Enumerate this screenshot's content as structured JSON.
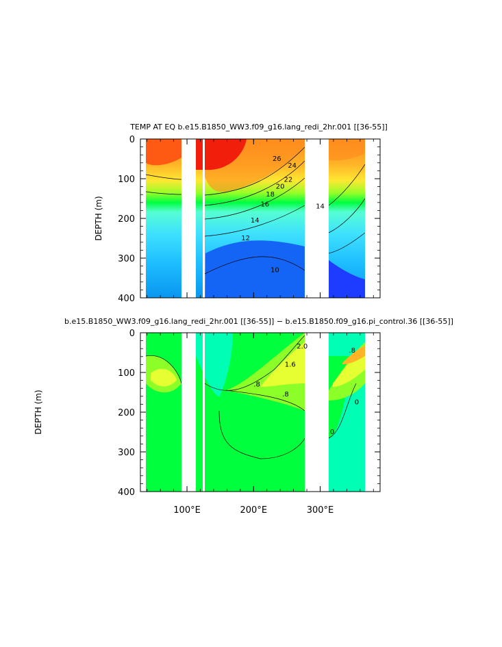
{
  "chart_data": [
    {
      "type": "heatmap",
      "title": "TEMP AT EQ  b.e15.B1850_WW3.f09_g16.lang_redi_2hr.001  [[36-55]]",
      "xlabel": "",
      "ylabel": "DEPTH (m)",
      "xlim": [
        30,
        390
      ],
      "ylim": [
        400,
        0
      ],
      "x_ticks": [
        {
          "value": 100,
          "label": ""
        },
        {
          "value": 200,
          "label": ""
        },
        {
          "value": 300,
          "label": ""
        }
      ],
      "y_ticks": [
        {
          "value": 0,
          "label": "0"
        },
        {
          "value": 100,
          "label": "100"
        },
        {
          "value": 200,
          "label": "200"
        },
        {
          "value": 300,
          "label": "300"
        },
        {
          "value": 400,
          "label": "400"
        }
      ],
      "contour_labels": [
        {
          "text": "26",
          "lon": 235,
          "depth": 55
        },
        {
          "text": "24",
          "lon": 258,
          "depth": 72
        },
        {
          "text": "22",
          "lon": 252,
          "depth": 108
        },
        {
          "text": "20",
          "lon": 240,
          "depth": 125
        },
        {
          "text": "18",
          "lon": 225,
          "depth": 145
        },
        {
          "text": "16",
          "lon": 217,
          "depth": 170
        },
        {
          "text": "14",
          "lon": 202,
          "depth": 210
        },
        {
          "text": "14",
          "lon": 300,
          "depth": 175
        },
        {
          "text": "12",
          "lon": 188,
          "depth": 255
        },
        {
          "text": "10",
          "lon": 232,
          "depth": 335
        }
      ],
      "land_gaps_lon": [
        [
          97,
          115
        ],
        [
          128,
          130
        ],
        [
          278,
          313
        ]
      ]
    },
    {
      "type": "heatmap",
      "title": "b.e15.B1850_WW3.f09_g16.lang_redi_2hr.001  [[36-55]]  −  b.e15.B1850.f09_g16.pi_control.36  [[36-55]]",
      "xlabel": "",
      "ylabel": "DEPTH (m)",
      "xlim": [
        30,
        390
      ],
      "ylim": [
        400,
        0
      ],
      "x_ticks": [
        {
          "value": 100,
          "label": "100°E"
        },
        {
          "value": 200,
          "label": "200°E"
        },
        {
          "value": 300,
          "label": "300°E"
        }
      ],
      "y_ticks": [
        {
          "value": 0,
          "label": "0"
        },
        {
          "value": 100,
          "label": "100"
        },
        {
          "value": 200,
          "label": "200"
        },
        {
          "value": 300,
          "label": "300"
        },
        {
          "value": 400,
          "label": "400"
        }
      ],
      "contour_labels": [
        {
          "text": "2.0",
          "lon": 273,
          "depth": 40
        },
        {
          "text": "1.6",
          "lon": 255,
          "depth": 85
        },
        {
          "text": ".8",
          "lon": 205,
          "depth": 135
        },
        {
          "text": ".8",
          "lon": 248,
          "depth": 160
        },
        {
          "text": ".8",
          "lon": 348,
          "depth": 50
        },
        {
          "text": "0",
          "lon": 355,
          "depth": 180
        },
        {
          "text": "0",
          "lon": 318,
          "depth": 255
        }
      ],
      "land_gaps_lon": [
        [
          97,
          115
        ],
        [
          128,
          130
        ],
        [
          278,
          313
        ]
      ]
    }
  ],
  "colors": {
    "temp_scale": [
      "#1e3cff",
      "#1464f5",
      "#0a96f0",
      "#1ebeff",
      "#3ee0ff",
      "#56ffd4",
      "#00f0a0",
      "#00ff40",
      "#96ff28",
      "#e6ff32",
      "#ffe632",
      "#ffb428",
      "#ff8c1e",
      "#ff5a14",
      "#f01e0a"
    ],
    "diff_scale": [
      "#00ffb4",
      "#00ff3c",
      "#8cff28",
      "#e6ff32",
      "#ffe632",
      "#ffb428"
    ]
  }
}
